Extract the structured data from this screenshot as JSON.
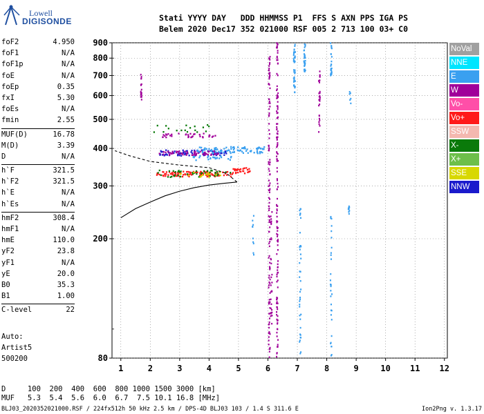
{
  "logo": {
    "line1": "Lowell",
    "line2": "DIGISONDE"
  },
  "header": {
    "row1": "Stati YYYY DAY   DDD HHMMSS P1  FFS S AXN PPS IGA PS",
    "row2": "Belem 2020 Dec17 352 021000 RSF 005 2 713 100 03+ C0"
  },
  "params": [
    {
      "k": "foF2",
      "v": "4.950"
    },
    {
      "k": "foF1",
      "v": "N/A"
    },
    {
      "k": "foF1p",
      "v": "N/A"
    },
    {
      "k": "foE",
      "v": "N/A"
    },
    {
      "k": "foEp",
      "v": "0.35"
    },
    {
      "k": "fxI",
      "v": "5.30"
    },
    {
      "k": "foEs",
      "v": "N/A"
    },
    {
      "k": "fmin",
      "v": "2.55"
    },
    {
      "k": "MUF(D)",
      "v": "16.78",
      "sep": true
    },
    {
      "k": "M(D)",
      "v": "3.39"
    },
    {
      "k": "D",
      "v": "N/A"
    },
    {
      "k": "h`F",
      "v": "321.5",
      "sep": true
    },
    {
      "k": "h`F2",
      "v": "321.5"
    },
    {
      "k": "h`E",
      "v": "N/A"
    },
    {
      "k": "h`Es",
      "v": "N/A"
    },
    {
      "k": "hmF2",
      "v": "308.4",
      "sep": true
    },
    {
      "k": "hmF1",
      "v": "N/A"
    },
    {
      "k": "hmE",
      "v": "110.0"
    },
    {
      "k": "yF2",
      "v": "23.8"
    },
    {
      "k": "yF1",
      "v": "N/A"
    },
    {
      "k": "yE",
      "v": "20.0"
    },
    {
      "k": "B0",
      "v": "35.3"
    },
    {
      "k": "B1",
      "v": "1.00"
    },
    {
      "k": "C-level",
      "v": "22",
      "sep": true
    }
  ],
  "auto": {
    "l1": "Auto:",
    "l2": "Artist5",
    "l3": "500200"
  },
  "legend": [
    {
      "label": "NoVal",
      "color": "#a0a0a0"
    },
    {
      "label": "NNE",
      "color": "#00e5ff"
    },
    {
      "label": "E",
      "color": "#3aa0f0"
    },
    {
      "label": "W",
      "color": "#a0009a"
    },
    {
      "label": "Vo-",
      "color": "#ff4fa8"
    },
    {
      "label": "Vo+",
      "color": "#ff1a1a"
    },
    {
      "label": "SSW",
      "color": "#f4b8b0"
    },
    {
      "label": "X-",
      "color": "#0a7a0a"
    },
    {
      "label": "X+",
      "color": "#6dbf4a"
    },
    {
      "label": "SSE",
      "color": "#d8d800"
    },
    {
      "label": "NNW",
      "color": "#1a1acc"
    }
  ],
  "muf": {
    "row1": "D     100  200  400  600  800 1000 1500 3000 [km]",
    "row2": "MUF   5.3  5.4  5.6  6.0  6.7  7.5 10.1 16.8 [MHz]"
  },
  "footer": "BLJ03_2020352021000.RSF / 224fx512h 50 kHz 2.5 km / DPS-4D BLJ03 103 / 1.4 S 311.6 E",
  "version": "Ion2Png v. 1.3.17",
  "chart_data": {
    "type": "scatter",
    "xlim": [
      0.7,
      12.1
    ],
    "ylim": [
      80,
      900
    ],
    "y_scale": "log",
    "x_ticks": [
      "1",
      "2",
      "3",
      "4",
      "5",
      "6",
      "7",
      "8",
      "9",
      "10",
      "11",
      "12"
    ],
    "y_ticks": [
      "80",
      "200",
      "300",
      "400",
      "500",
      "600",
      "700",
      "800",
      "900"
    ],
    "y_tick_values": [
      80,
      200,
      300,
      400,
      500,
      600,
      700,
      800,
      900
    ],
    "grid": true,
    "clusters": [
      {
        "color": "#ff1a1a",
        "x": [
          2.2,
          4.8
        ],
        "y": [
          322,
          335
        ],
        "n": 110
      },
      {
        "color": "#0a7a0a",
        "x": [
          2.2,
          4.8
        ],
        "y": [
          320,
          338
        ],
        "n": 45
      },
      {
        "color": "#1a1acc",
        "x": [
          2.3,
          4.6
        ],
        "y": [
          378,
          395
        ],
        "n": 70
      },
      {
        "color": "#a0009a",
        "x": [
          2.3,
          4.4
        ],
        "y": [
          380,
          392
        ],
        "n": 60
      },
      {
        "color": "#3aa0f0",
        "x": [
          3.6,
          5.9
        ],
        "y": [
          385,
          405
        ],
        "n": 90
      },
      {
        "color": "#a0009a",
        "x": [
          2.4,
          4.3
        ],
        "y": [
          435,
          450
        ],
        "n": 35
      },
      {
        "color": "#ff1a1a",
        "x": [
          4.8,
          5.4
        ],
        "y": [
          330,
          345
        ],
        "n": 30
      },
      {
        "color": "#0a7a0a",
        "x": [
          2.1,
          4.0
        ],
        "y": [
          452,
          480
        ],
        "n": 18
      },
      {
        "color": "#3aa0f0",
        "x": [
          3.4,
          4.8
        ],
        "y": [
          365,
          378
        ],
        "n": 25
      },
      {
        "color": "#d8d800",
        "x": [
          3.0,
          4.5
        ],
        "y": [
          320,
          335
        ],
        "n": 15
      }
    ],
    "columns": [
      {
        "color": "#a0009a",
        "x": 6.05,
        "y": [
          80,
          870
        ],
        "n": 120
      },
      {
        "color": "#a0009a",
        "x": 6.32,
        "y": [
          80,
          900
        ],
        "n": 140
      },
      {
        "color": "#a0009a",
        "x": 6.12,
        "y": [
          100,
          250
        ],
        "n": 30
      },
      {
        "color": "#3aa0f0",
        "x": 6.9,
        "y": [
          600,
          900
        ],
        "n": 40
      },
      {
        "color": "#3aa0f0",
        "x": 7.1,
        "y": [
          80,
          260
        ],
        "n": 40
      },
      {
        "color": "#3aa0f0",
        "x": 7.25,
        "y": [
          720,
          900
        ],
        "n": 30
      },
      {
        "color": "#a0009a",
        "x": 7.75,
        "y": [
          450,
          730
        ],
        "n": 30
      },
      {
        "color": "#3aa0f0",
        "x": 8.15,
        "y": [
          80,
          240
        ],
        "n": 30
      },
      {
        "color": "#3aa0f0",
        "x": 8.15,
        "y": [
          700,
          900
        ],
        "n": 25
      },
      {
        "color": "#3aa0f0",
        "x": 8.75,
        "y": [
          230,
          260
        ],
        "n": 8
      },
      {
        "color": "#a0009a",
        "x": 1.7,
        "y": [
          580,
          720
        ],
        "n": 18
      },
      {
        "color": "#3aa0f0",
        "x": 5.5,
        "y": [
          170,
          240
        ],
        "n": 10
      },
      {
        "color": "#3aa0f0",
        "x": 8.8,
        "y": [
          560,
          620
        ],
        "n": 6
      }
    ],
    "profile": [
      [
        1.0,
        235
      ],
      [
        1.5,
        252
      ],
      [
        2.0,
        265
      ],
      [
        2.5,
        278
      ],
      [
        3.0,
        288
      ],
      [
        3.5,
        296
      ],
      [
        4.0,
        302
      ],
      [
        4.5,
        306
      ],
      [
        4.95,
        309
      ],
      [
        4.6,
        330
      ],
      [
        4.0,
        345
      ],
      [
        3.0,
        352
      ],
      [
        2.0,
        362
      ],
      [
        1.3,
        378
      ],
      [
        0.8,
        393
      ]
    ],
    "profile_dashed_from": 9
  }
}
